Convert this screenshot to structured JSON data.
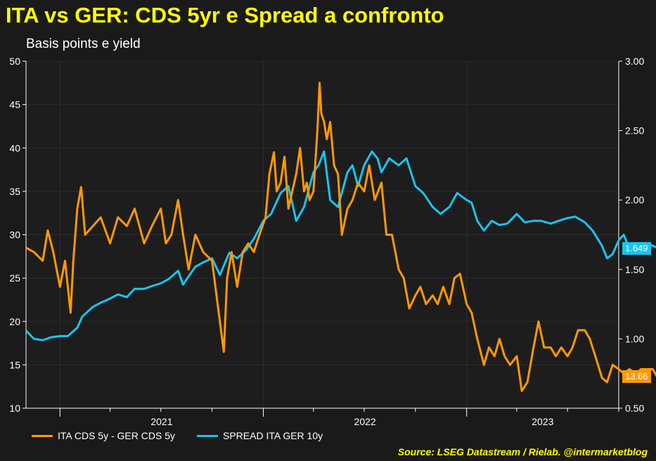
{
  "title": "ITA vs GER: CDS 5yr e Spread a confronto",
  "subtitle": "Basis points e yield",
  "source": "Source: LSEG Datastream / Rielab. @intermarketblog",
  "colors": {
    "background": "#1a1a1a",
    "cds": "#ff9900",
    "spread": "#19c4f0",
    "title": "#ffff00",
    "grid": "#2c2c2c"
  },
  "chart_data": {
    "type": "line",
    "x_tick_labels": [
      "2021",
      "2022",
      "2023"
    ],
    "x_range": [
      "2020-11",
      "2023-10"
    ],
    "y_left": {
      "range": [
        10,
        50
      ],
      "ticks": [
        "10",
        "15",
        "20",
        "25",
        "30",
        "35",
        "40",
        "45",
        "50"
      ]
    },
    "y_right": {
      "range": [
        0.5,
        3.0
      ],
      "ticks": [
        "0.50",
        "1.00",
        "1.50",
        "2.00",
        "2.50",
        "3.00"
      ]
    },
    "grid": true,
    "legend_position": "bottom-left",
    "series": [
      {
        "name": "ITA CDS 5y - GER CDS 5y",
        "axis": "left",
        "last_value_label": "13.66",
        "points": [
          [
            "2020-11-01",
            28.5
          ],
          [
            "2020-11-15",
            28
          ],
          [
            "2020-12-01",
            27
          ],
          [
            "2020-12-10",
            30.5
          ],
          [
            "2020-12-20",
            28
          ],
          [
            "2021-01-01",
            24
          ],
          [
            "2021-01-10",
            27
          ],
          [
            "2021-01-20",
            21
          ],
          [
            "2021-01-25",
            27
          ],
          [
            "2021-02-01",
            33
          ],
          [
            "2021-02-08",
            35.5
          ],
          [
            "2021-02-15",
            30
          ],
          [
            "2021-03-01",
            31
          ],
          [
            "2021-03-15",
            32
          ],
          [
            "2021-04-01",
            29
          ],
          [
            "2021-04-15",
            32
          ],
          [
            "2021-05-01",
            31
          ],
          [
            "2021-05-15",
            33
          ],
          [
            "2021-06-01",
            29
          ],
          [
            "2021-06-15",
            31
          ],
          [
            "2021-07-01",
            33
          ],
          [
            "2021-07-10",
            29
          ],
          [
            "2021-07-20",
            30
          ],
          [
            "2021-08-01",
            34
          ],
          [
            "2021-08-10",
            30
          ],
          [
            "2021-08-20",
            26
          ],
          [
            "2021-09-01",
            30
          ],
          [
            "2021-09-15",
            28
          ],
          [
            "2021-10-01",
            27
          ],
          [
            "2021-10-15",
            20
          ],
          [
            "2021-10-22",
            16.5
          ],
          [
            "2021-10-28",
            25
          ],
          [
            "2021-11-05",
            28
          ],
          [
            "2021-11-15",
            24
          ],
          [
            "2021-11-25",
            28
          ],
          [
            "2021-12-05",
            29
          ],
          [
            "2021-12-15",
            28
          ],
          [
            "2021-12-25",
            30
          ],
          [
            "2022-01-05",
            32
          ],
          [
            "2022-01-12",
            37
          ],
          [
            "2022-01-20",
            39.5
          ],
          [
            "2022-01-25",
            35
          ],
          [
            "2022-02-01",
            36
          ],
          [
            "2022-02-08",
            39
          ],
          [
            "2022-02-15",
            33
          ],
          [
            "2022-02-22",
            35
          ],
          [
            "2022-03-01",
            37
          ],
          [
            "2022-03-08",
            40
          ],
          [
            "2022-03-15",
            35
          ],
          [
            "2022-03-20",
            36
          ],
          [
            "2022-03-25",
            34
          ],
          [
            "2022-04-01",
            35
          ],
          [
            "2022-04-08",
            42
          ],
          [
            "2022-04-12",
            47.5
          ],
          [
            "2022-04-15",
            44
          ],
          [
            "2022-04-20",
            43
          ],
          [
            "2022-04-25",
            41
          ],
          [
            "2022-05-01",
            43
          ],
          [
            "2022-05-08",
            38
          ],
          [
            "2022-05-15",
            37
          ],
          [
            "2022-05-22",
            30
          ],
          [
            "2022-06-01",
            33
          ],
          [
            "2022-06-10",
            34
          ],
          [
            "2022-06-20",
            36
          ],
          [
            "2022-07-01",
            35
          ],
          [
            "2022-07-10",
            38
          ],
          [
            "2022-07-20",
            34
          ],
          [
            "2022-08-01",
            36
          ],
          [
            "2022-08-10",
            30
          ],
          [
            "2022-08-20",
            30
          ],
          [
            "2022-09-01",
            26
          ],
          [
            "2022-09-10",
            25
          ],
          [
            "2022-09-20",
            21.5
          ],
          [
            "2022-10-01",
            23
          ],
          [
            "2022-10-10",
            24
          ],
          [
            "2022-10-20",
            22
          ],
          [
            "2022-11-01",
            23
          ],
          [
            "2022-11-10",
            22
          ],
          [
            "2022-11-20",
            24
          ],
          [
            "2022-12-01",
            22
          ],
          [
            "2022-12-10",
            25
          ],
          [
            "2022-12-20",
            25.5
          ],
          [
            "2023-01-01",
            22
          ],
          [
            "2023-01-10",
            21
          ],
          [
            "2023-01-20",
            18
          ],
          [
            "2023-02-01",
            15
          ],
          [
            "2023-02-10",
            17
          ],
          [
            "2023-02-20",
            16
          ],
          [
            "2023-03-01",
            18
          ],
          [
            "2023-03-10",
            16
          ],
          [
            "2023-03-20",
            15
          ],
          [
            "2023-04-01",
            16
          ],
          [
            "2023-04-10",
            12
          ],
          [
            "2023-04-20",
            13
          ],
          [
            "2023-05-01",
            17
          ],
          [
            "2023-05-10",
            20
          ],
          [
            "2023-05-20",
            17
          ],
          [
            "2023-06-01",
            17
          ],
          [
            "2023-06-10",
            16
          ],
          [
            "2023-06-20",
            17
          ],
          [
            "2023-07-01",
            16
          ],
          [
            "2023-07-10",
            17
          ],
          [
            "2023-07-20",
            19
          ],
          [
            "2023-08-01",
            19
          ],
          [
            "2023-08-10",
            18
          ],
          [
            "2023-08-20",
            16
          ],
          [
            "2023-09-01",
            13.5
          ],
          [
            "2023-09-10",
            13
          ],
          [
            "2023-09-20",
            15
          ],
          [
            "2023-10-01",
            14.5
          ],
          [
            "2023-10-10",
            14
          ],
          [
            "2023-10-20",
            14.5
          ],
          [
            "2023-11-01",
            14
          ],
          [
            "2023-11-10",
            14.5
          ],
          [
            "2023-11-20",
            14.5
          ],
          [
            "2023-12-01",
            14.5
          ],
          [
            "2023-12-10",
            13.5
          ],
          [
            "2023-12-15",
            13.66
          ]
        ]
      },
      {
        "name": "SPREAD ITA GER 10y",
        "axis": "right",
        "last_value_label": "1.649",
        "points": [
          [
            "2020-11-01",
            1.06
          ],
          [
            "2020-11-15",
            1.0
          ],
          [
            "2020-12-01",
            0.99
          ],
          [
            "2020-12-15",
            1.01
          ],
          [
            "2021-01-01",
            1.02
          ],
          [
            "2021-01-15",
            1.02
          ],
          [
            "2021-02-01",
            1.08
          ],
          [
            "2021-02-10",
            1.16
          ],
          [
            "2021-03-01",
            1.23
          ],
          [
            "2021-03-15",
            1.26
          ],
          [
            "2021-04-01",
            1.29
          ],
          [
            "2021-04-15",
            1.32
          ],
          [
            "2021-05-01",
            1.3
          ],
          [
            "2021-05-15",
            1.36
          ],
          [
            "2021-06-01",
            1.36
          ],
          [
            "2021-06-15",
            1.38
          ],
          [
            "2021-07-01",
            1.4
          ],
          [
            "2021-07-15",
            1.43
          ],
          [
            "2021-08-01",
            1.49
          ],
          [
            "2021-08-10",
            1.39
          ],
          [
            "2021-08-20",
            1.45
          ],
          [
            "2021-09-01",
            1.52
          ],
          [
            "2021-09-15",
            1.55
          ],
          [
            "2021-10-01",
            1.58
          ],
          [
            "2021-10-15",
            1.46
          ],
          [
            "2021-11-01",
            1.62
          ],
          [
            "2021-11-15",
            1.58
          ],
          [
            "2021-12-01",
            1.64
          ],
          [
            "2021-12-15",
            1.72
          ],
          [
            "2022-01-01",
            1.85
          ],
          [
            "2022-01-15",
            1.9
          ],
          [
            "2022-02-01",
            2.05
          ],
          [
            "2022-02-15",
            2.1
          ],
          [
            "2022-03-01",
            1.85
          ],
          [
            "2022-03-15",
            1.95
          ],
          [
            "2022-04-01",
            2.2
          ],
          [
            "2022-04-10",
            2.25
          ],
          [
            "2022-04-20",
            2.35
          ],
          [
            "2022-05-01",
            2.0
          ],
          [
            "2022-05-15",
            1.95
          ],
          [
            "2022-06-01",
            2.2
          ],
          [
            "2022-06-10",
            2.25
          ],
          [
            "2022-06-20",
            2.1
          ],
          [
            "2022-07-01",
            2.25
          ],
          [
            "2022-07-15",
            2.35
          ],
          [
            "2022-07-25",
            2.3
          ],
          [
            "2022-08-01",
            2.2
          ],
          [
            "2022-08-15",
            2.3
          ],
          [
            "2022-09-01",
            2.25
          ],
          [
            "2022-09-15",
            2.3
          ],
          [
            "2022-10-01",
            2.1
          ],
          [
            "2022-10-15",
            2.05
          ],
          [
            "2022-11-01",
            1.95
          ],
          [
            "2022-11-15",
            1.9
          ],
          [
            "2022-12-01",
            1.95
          ],
          [
            "2022-12-15",
            2.05
          ],
          [
            "2023-01-01",
            2.0
          ],
          [
            "2023-01-10",
            1.98
          ],
          [
            "2023-01-20",
            1.85
          ],
          [
            "2023-02-01",
            1.78
          ],
          [
            "2023-02-15",
            1.85
          ],
          [
            "2023-03-01",
            1.82
          ],
          [
            "2023-03-15",
            1.83
          ],
          [
            "2023-04-01",
            1.9
          ],
          [
            "2023-04-15",
            1.84
          ],
          [
            "2023-05-01",
            1.85
          ],
          [
            "2023-05-15",
            1.85
          ],
          [
            "2023-06-01",
            1.83
          ],
          [
            "2023-06-15",
            1.85
          ],
          [
            "2023-07-01",
            1.87
          ],
          [
            "2023-07-15",
            1.88
          ],
          [
            "2023-08-01",
            1.84
          ],
          [
            "2023-08-15",
            1.78
          ],
          [
            "2023-09-01",
            1.67
          ],
          [
            "2023-09-10",
            1.58
          ],
          [
            "2023-09-20",
            1.61
          ],
          [
            "2023-10-01",
            1.71
          ],
          [
            "2023-10-10",
            1.75
          ],
          [
            "2023-10-20",
            1.65
          ],
          [
            "2023-11-01",
            1.62
          ],
          [
            "2023-11-10",
            1.67
          ],
          [
            "2023-11-20",
            1.69
          ],
          [
            "2023-12-01",
            1.67
          ],
          [
            "2023-12-15",
            1.649
          ]
        ]
      }
    ]
  }
}
